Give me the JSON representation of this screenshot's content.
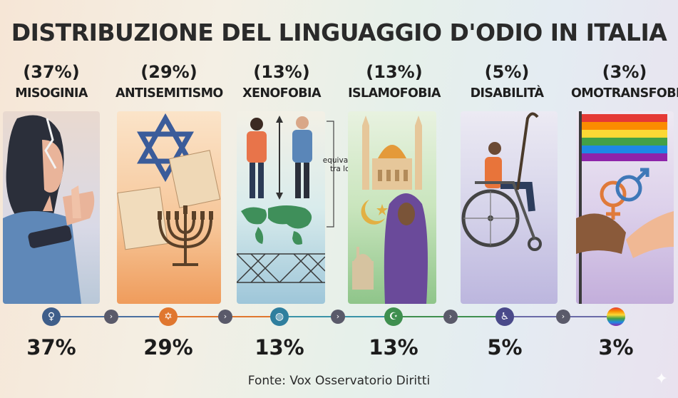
{
  "title": "DISTRIBUZIONE DEL LINGUAGGIO D'ODIO IN ITALIA",
  "categories": [
    {
      "percent_label": "(37%)",
      "name": "MISOGINIA",
      "value": 37,
      "bottom_label": "37%",
      "icon": "venus-icon",
      "color": "#3f5e8a"
    },
    {
      "percent_label": "(29%)",
      "name": "ANTISEMITISMO",
      "value": 29,
      "bottom_label": "29%",
      "icon": "star-of-david-icon",
      "color": "#e0772f"
    },
    {
      "percent_label": "(13%)",
      "name": "XENOFOBIA",
      "value": 13,
      "bottom_label": "13%",
      "icon": "globe-icon",
      "color": "#2f7f9e"
    },
    {
      "percent_label": "(13%)",
      "name": "ISLAMOFOBIA",
      "value": 13,
      "bottom_label": "13%",
      "icon": "crescent-star-icon",
      "color": "#3f8f4f"
    },
    {
      "percent_label": "(5%)",
      "name": "DISABILITÀ",
      "value": 5,
      "bottom_label": "5%",
      "icon": "wheelchair-icon",
      "color": "#4a4a8a"
    },
    {
      "percent_label": "(3%)",
      "name": "OMOTRANSFOBIA",
      "value": 3,
      "bottom_label": "3%",
      "icon": "rainbow-flag-icon",
      "color": "#7a5aa0"
    }
  ],
  "annotation": {
    "line1": "equivalenti",
    "line2": "tra loro"
  },
  "source": "Fonte: Vox Osservatorio Diritti"
}
